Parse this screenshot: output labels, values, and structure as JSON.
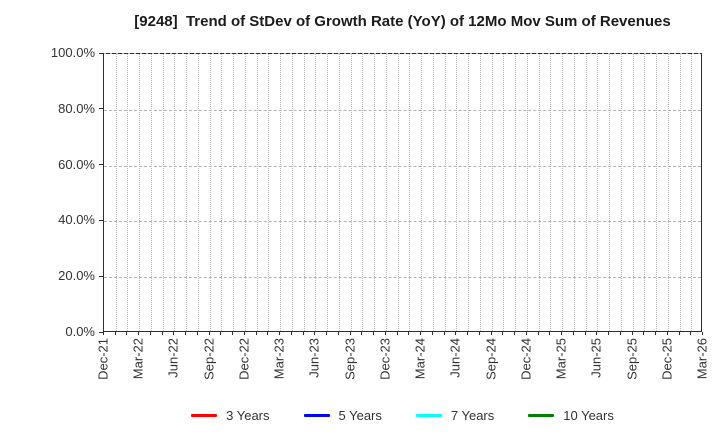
{
  "chart_data": {
    "type": "line",
    "title": "[9248]  Trend of StDev of Growth Rate (YoY) of 12Mo Mov Sum of Revenues",
    "xlabel": "",
    "ylabel": "",
    "ylim": [
      0,
      100
    ],
    "y_tick_labels": [
      "0.0%",
      "20.0%",
      "40.0%",
      "60.0%",
      "80.0%",
      "100.0%"
    ],
    "y_tick_values": [
      0,
      20,
      40,
      60,
      80,
      100
    ],
    "x_tick_labels": [
      "Dec-21",
      "Mar-22",
      "Jun-22",
      "Sep-22",
      "Dec-22",
      "Mar-23",
      "Jun-23",
      "Sep-23",
      "Dec-23",
      "Mar-24",
      "Jun-24",
      "Sep-24",
      "Dec-24",
      "Mar-25",
      "Jun-25",
      "Sep-25",
      "Dec-25",
      "Mar-26"
    ],
    "months_per_x_tick": 3,
    "grid": true,
    "grid_style": {
      "horizontal": "dashed",
      "vertical": "dotted",
      "vertical_interval": "monthly"
    },
    "legend_position": "bottom-center",
    "series": [
      {
        "name": "3 Years",
        "color": "#ff0000",
        "values": []
      },
      {
        "name": "5 Years",
        "color": "#0000ff",
        "values": []
      },
      {
        "name": "7 Years",
        "color": "#00ffff",
        "values": []
      },
      {
        "name": "10 Years",
        "color": "#008000",
        "values": []
      }
    ],
    "note": "plot area is empty - no series data is drawn"
  }
}
